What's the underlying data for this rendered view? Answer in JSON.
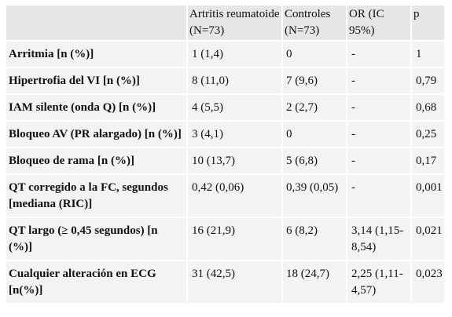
{
  "table": {
    "headers": [
      "",
      "Artritis reumatoide (N=73)",
      "Controles (N=73)",
      "OR (IC 95%)",
      "p"
    ],
    "rows": [
      [
        "Arritmia [n (%)]",
        "1 (1,4)",
        "0",
        "-",
        "1"
      ],
      [
        "Hipertrofia del VI [n (%)]",
        "8 (11,0)",
        "7 (9,6)",
        "-",
        "0,79"
      ],
      [
        "IAM silente (onda Q) [n (%)]",
        "4 (5,5)",
        "2 (2,7)",
        "-",
        "0,68"
      ],
      [
        "Bloqueo AV (PR alargado) [n (%)]",
        "3 (4,1)",
        "0",
        "-",
        "0,25"
      ],
      [
        "Bloqueo de rama [n (%)]",
        "10 (13,7)",
        "5 (6,8)",
        "-",
        "0,17"
      ],
      [
        "QT corregido a la FC, segundos [mediana (RIC)]",
        "0,42 (0,06)",
        "0,39 (0,05)",
        "-",
        "0,001"
      ],
      [
        "QT largo (≥ 0,45 segundos) [n (%)]",
        "16 (21,9)",
        "6 (8,2)",
        "3,14 (1,15-8,54)",
        "0,021"
      ],
      [
        "Cualquier alteración en ECG [n(%)]",
        "31 (42,5)",
        "18 (24,7)",
        "2,25 (1,11-4,57)",
        "0,023"
      ]
    ]
  }
}
